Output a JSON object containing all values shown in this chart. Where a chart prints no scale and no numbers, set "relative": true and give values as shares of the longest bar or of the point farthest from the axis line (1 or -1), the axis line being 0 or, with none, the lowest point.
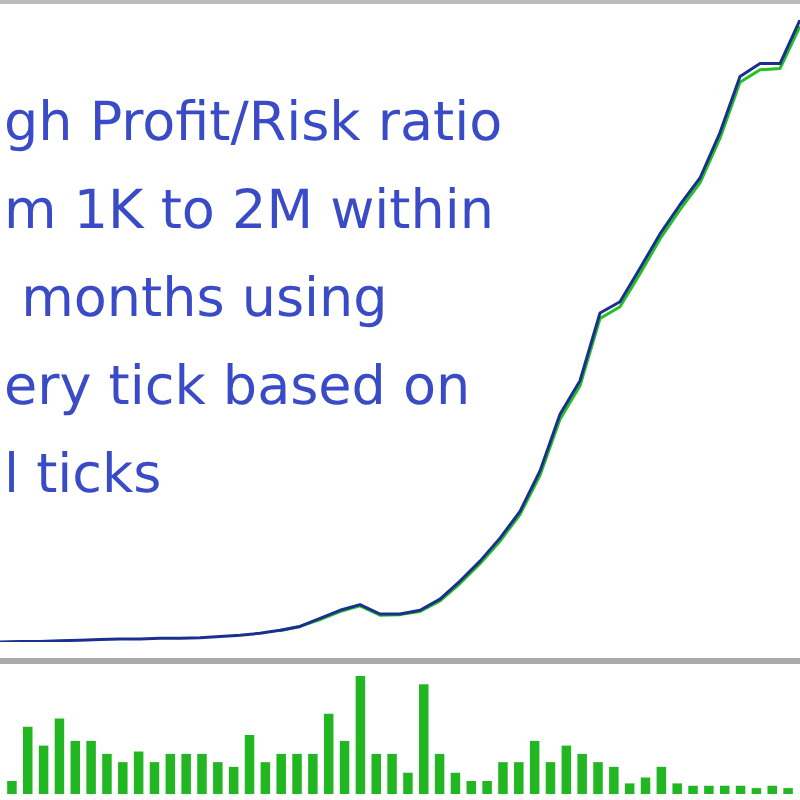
{
  "chart_data": [
    {
      "type": "line",
      "relative": true,
      "categories": [
        null,
        null,
        null,
        null,
        null,
        null,
        null,
        null,
        null,
        null,
        null,
        null,
        null,
        null,
        null,
        null,
        null,
        null,
        null,
        null,
        null,
        null,
        null,
        null,
        null,
        null,
        null,
        null,
        null,
        null,
        null,
        null,
        null,
        null,
        null,
        null,
        null,
        null,
        null,
        null,
        null
      ],
      "annotations": [
        "gh Profit/Risk ratio",
        "m 1K to 2M within",
        " months using",
        "ery tick based on",
        "l ticks"
      ],
      "series": [
        {
          "color": "#22c022",
          "values": [
            null,
            null,
            null,
            null,
            null,
            null,
            null,
            null,
            null,
            null,
            null,
            null,
            null,
            null,
            0.018,
            0.025,
            0.036,
            0.049,
            0.058,
            0.043,
            0.044,
            0.049,
            0.066,
            0.094,
            0.126,
            0.162,
            0.205,
            0.268,
            0.358,
            0.412,
            0.52,
            0.539,
            0.592,
            0.648,
            0.695,
            0.738,
            0.81,
            0.9,
            0.92,
            0.922,
            0.99
          ]
        },
        {
          "color": "#1a2f8f",
          "values": [
            0,
            0.001,
            0.001,
            0.002,
            0.003,
            0.004,
            0.005,
            0.005,
            0.006,
            0.006,
            0.007,
            0.009,
            0.011,
            0.014,
            0.019,
            0.025,
            0.038,
            0.051,
            0.06,
            0.045,
            0.045,
            0.051,
            0.069,
            0.098,
            0.13,
            0.167,
            0.21,
            0.275,
            0.366,
            0.42,
            0.529,
            0.547,
            0.601,
            0.656,
            0.703,
            0.746,
            0.819,
            0.909,
            0.93,
            0.93,
            1
          ]
        }
      ]
    },
    {
      "type": "bar",
      "relative": true,
      "color": "#22b722",
      "categories": [
        null,
        null,
        null,
        null,
        null,
        null,
        null,
        null,
        null,
        null,
        null,
        null,
        null,
        null,
        null,
        null,
        null,
        null,
        null,
        null,
        null,
        null,
        null,
        null,
        null,
        null,
        null,
        null,
        null,
        null,
        null,
        null,
        null,
        null,
        null,
        null,
        null,
        null,
        null,
        null,
        null,
        null,
        null,
        null,
        null,
        null,
        null,
        null,
        null,
        null
      ],
      "values": [
        0.11,
        0.57,
        0.41,
        0.64,
        0.45,
        0.45,
        0.34,
        0.27,
        0.36,
        0.27,
        0.34,
        0.34,
        0.34,
        0.27,
        0.23,
        0.5,
        0.27,
        0.34,
        0.34,
        0.34,
        0.68,
        0.45,
        1,
        0.34,
        0.34,
        0.18,
        0.93,
        0.34,
        0.18,
        0.11,
        0.11,
        0.27,
        0.27,
        0.45,
        0.27,
        0.41,
        0.34,
        0.27,
        0.23,
        0.09,
        0.14,
        0.23,
        0.09,
        0.07,
        0.07,
        0.07,
        0.07,
        0.05,
        0.07,
        0.05
      ]
    }
  ]
}
